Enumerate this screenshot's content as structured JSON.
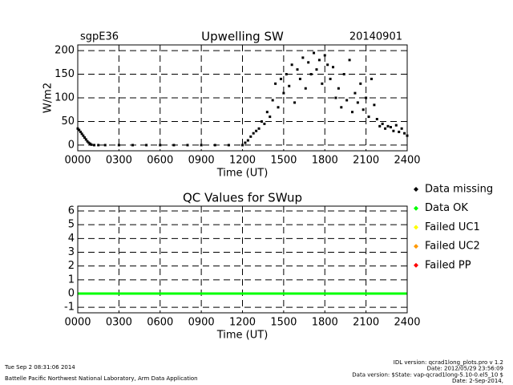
{
  "chart_data": [
    {
      "type": "scatter",
      "title": "Upwelling SW",
      "label_left": "sgpE36",
      "label_right": "20140901",
      "x_label": "Time (UT)",
      "y_label": "W/m2",
      "xlim": [
        0,
        24
      ],
      "xticks": [
        {
          "value": 0,
          "label": "0000"
        },
        {
          "value": 3,
          "label": "0300"
        },
        {
          "value": 6,
          "label": "0600"
        },
        {
          "value": 9,
          "label": "0900"
        },
        {
          "value": 12,
          "label": "1200"
        },
        {
          "value": 15,
          "label": "1500"
        },
        {
          "value": 18,
          "label": "1800"
        },
        {
          "value": 21,
          "label": "2100"
        },
        {
          "value": 24,
          "label": "2400"
        }
      ],
      "ylim": [
        -12,
        212
      ],
      "yticks": [
        0,
        50,
        100,
        150,
        200
      ],
      "grid": true,
      "series": [
        {
          "color": "#000000",
          "x": [
            0,
            0.1,
            0.2,
            0.3,
            0.4,
            0.5,
            0.6,
            0.7,
            0.8,
            0.9,
            1.0,
            1.2,
            1.5,
            2,
            3,
            4,
            5,
            6,
            7,
            8,
            9,
            10,
            11,
            12,
            12.2,
            12.4,
            12.6,
            12.8,
            13.0,
            13.2,
            13.4,
            13.6,
            13.8,
            14.0,
            14.2,
            14.4,
            14.6,
            14.8,
            15.0,
            15.2,
            15.4,
            15.6,
            15.8,
            16.0,
            16.2,
            16.4,
            16.6,
            16.8,
            17.0,
            17.2,
            17.4,
            17.6,
            17.8,
            18.0,
            18.2,
            18.4,
            18.6,
            18.8,
            19.0,
            19.2,
            19.4,
            19.6,
            19.8,
            20.0,
            20.2,
            20.4,
            20.6,
            20.8,
            21.0,
            21.2,
            21.4,
            21.6,
            21.8,
            22.0,
            22.2,
            22.4,
            22.6,
            22.8,
            23.0,
            23.2,
            23.4,
            23.6,
            23.8,
            24.0
          ],
          "values": [
            35,
            32,
            28,
            24,
            20,
            16,
            12,
            8,
            5,
            3,
            1,
            0,
            0,
            0,
            0,
            0,
            0,
            0,
            0,
            0,
            0,
            0,
            0,
            0,
            5,
            10,
            18,
            25,
            30,
            35,
            50,
            45,
            70,
            60,
            95,
            130,
            80,
            140,
            110,
            150,
            125,
            170,
            90,
            160,
            140,
            185,
            120,
            175,
            150,
            195,
            160,
            180,
            130,
            190,
            170,
            140,
            165,
            100,
            120,
            80,
            150,
            95,
            180,
            70,
            110,
            90,
            130,
            75,
            100,
            60,
            140,
            85,
            55,
            40,
            45,
            35,
            40,
            38,
            30,
            42,
            28,
            35,
            25,
            20
          ]
        }
      ]
    },
    {
      "type": "line",
      "title": "QC Values for SWup",
      "x_label": "Time (UT)",
      "xlim": [
        0,
        24
      ],
      "xticks": [
        {
          "value": 0,
          "label": "0000"
        },
        {
          "value": 3,
          "label": "0300"
        },
        {
          "value": 6,
          "label": "0600"
        },
        {
          "value": 9,
          "label": "0900"
        },
        {
          "value": 12,
          "label": "1200"
        },
        {
          "value": 15,
          "label": "1500"
        },
        {
          "value": 18,
          "label": "1800"
        },
        {
          "value": 21,
          "label": "2100"
        },
        {
          "value": 24,
          "label": "2400"
        }
      ],
      "ylim": [
        -1.4,
        6.35
      ],
      "yticks": [
        -1,
        0,
        1,
        2,
        3,
        4,
        5,
        6
      ],
      "grid": true,
      "series": [
        {
          "name": "Data missing",
          "color": "#000000",
          "x": [],
          "values": []
        },
        {
          "name": "Data OK",
          "color": "#00ff00",
          "x": [
            0,
            24
          ],
          "values": [
            0,
            0
          ]
        },
        {
          "name": "Failed UC1",
          "color": "#ffff00",
          "x": [],
          "values": []
        },
        {
          "name": "Failed UC2",
          "color": "#ff9900",
          "x": [],
          "values": []
        },
        {
          "name": "Failed PP",
          "color": "#ff0000",
          "x": [],
          "values": []
        }
      ]
    }
  ],
  "footer": {
    "left": [
      "Tue Sep  2 08:31:06 2014",
      "Battelle Pacific Northwest National Laboratory, Arm Data Application"
    ],
    "right": [
      "IDL version: qcrad1long_plots.pro v 1.2",
      "Date: 2012/05/29 23:56:09",
      "Data version: $State: vap-qcrad1long-5.10-0.el5_10 $",
      "Date: 2-Sep-2014,"
    ]
  }
}
